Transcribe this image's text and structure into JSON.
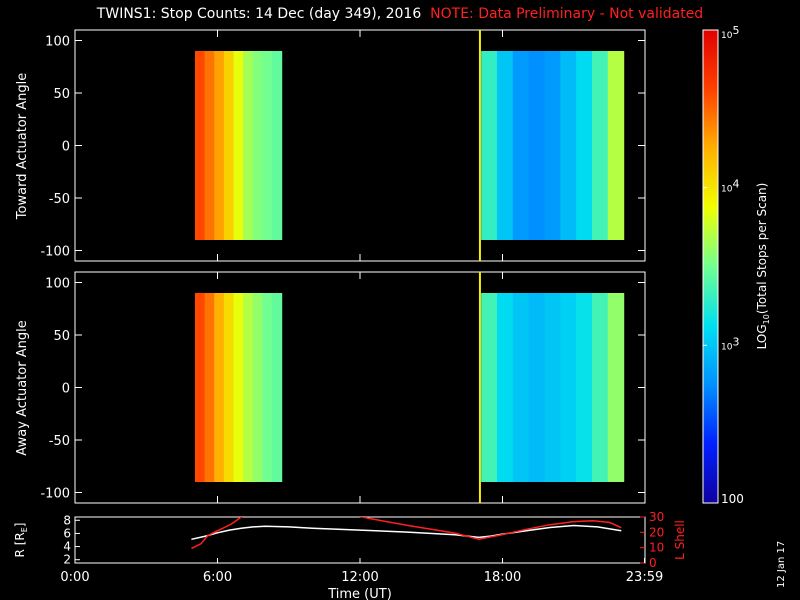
{
  "title": {
    "main": "TWINS1: Stop Counts: 14 Dec (day 349), 2016",
    "note": "NOTE: Data Preliminary - Not validated"
  },
  "date_stamp": "12 Jan 17",
  "colors": {
    "background": "#000000",
    "axis": "#ffffff",
    "note": "#ff2020",
    "r_line": "#ffffff",
    "lshell_line": "#ff2020",
    "separator_line": "#f4f000",
    "colormap": [
      "#1000a0",
      "#0020ff",
      "#0090ff",
      "#00e0f0",
      "#70ff90",
      "#f0ff00",
      "#ffb000",
      "#ff4000",
      "#e00000"
    ]
  },
  "chart_data": [
    {
      "id": "toward",
      "type": "heatmap",
      "ylabel": "Toward Actuator Angle",
      "xlim": [
        0,
        24
      ],
      "ylim": [
        -110,
        110
      ],
      "yticks": [
        100,
        50,
        0,
        -50,
        -100
      ],
      "angle_range": [
        -90,
        90
      ],
      "log_counts_blocks": [
        {
          "t_start": 5.05,
          "t_end": 8.7,
          "levels": [
            4.6,
            4.45,
            4.3,
            4.1,
            3.85,
            3.65,
            3.55,
            3.5,
            3.45
          ]
        },
        {
          "t_start": 17.1,
          "t_end": 23.1,
          "levels": [
            3.3,
            3.0,
            2.8,
            2.75,
            2.8,
            2.95,
            3.1,
            3.35,
            3.7
          ]
        }
      ],
      "vertical_marker_time": 17.05
    },
    {
      "id": "away",
      "type": "heatmap",
      "ylabel": "Away Actuator Angle",
      "xlim": [
        0,
        24
      ],
      "ylim": [
        -110,
        110
      ],
      "yticks": [
        100,
        50,
        0,
        -50,
        -100
      ],
      "angle_range": [
        -90,
        90
      ],
      "log_counts_blocks": [
        {
          "t_start": 5.05,
          "t_end": 8.7,
          "levels": [
            4.6,
            4.45,
            4.25,
            4.05,
            3.85,
            3.7,
            3.6,
            3.5,
            3.45
          ]
        },
        {
          "t_start": 17.1,
          "t_end": 23.1,
          "levels": [
            3.35,
            3.1,
            3.0,
            2.95,
            3.0,
            3.05,
            3.15,
            3.35,
            3.6
          ]
        }
      ],
      "vertical_marker_time": 17.05
    },
    {
      "id": "orbit",
      "type": "line",
      "ylabel": "R [R",
      "ylabel_sub": "E",
      "ylabel_end": "]",
      "y2label": "L Shell",
      "xlabel": "Time (UT)",
      "xlim": [
        0,
        24
      ],
      "xtick_labels": [
        "0:00",
        "6:00",
        "12:00",
        "18:00",
        "23:59"
      ],
      "xticks": [
        0,
        6,
        12,
        18,
        23.98
      ],
      "ylim": [
        1.5,
        8.5
      ],
      "yticks": [
        2,
        4,
        6,
        8
      ],
      "y2lim": [
        0,
        30
      ],
      "y2ticks": [
        0,
        10,
        20,
        30
      ],
      "series": [
        {
          "key": "R",
          "x": [
            4.9,
            5.5,
            6.0,
            6.5,
            7.0,
            7.5,
            8.0,
            9.0,
            10.0,
            12.0,
            14.0,
            16.0,
            17.0,
            17.5,
            18.0,
            19.0,
            20.0,
            21.0,
            22.0,
            23.0
          ],
          "y": [
            5.1,
            5.6,
            6.1,
            6.5,
            6.8,
            7.0,
            7.1,
            7.0,
            6.8,
            6.5,
            6.2,
            5.8,
            5.4,
            5.6,
            5.9,
            6.4,
            6.9,
            7.2,
            7.0,
            6.4
          ]
        },
        {
          "key": "L",
          "axis": "right",
          "x": [
            4.9,
            5.3,
            5.6,
            6.0,
            6.6,
            7.05,
            11.95,
            12.4,
            14.0,
            16.0,
            17.0,
            18.0,
            19.0,
            20.0,
            21.0,
            21.8,
            22.5,
            23.0
          ],
          "y": [
            9.5,
            12.5,
            18.0,
            21.0,
            25.5,
            30.5,
            30.5,
            29.0,
            24.5,
            19.5,
            15.5,
            18.5,
            22.0,
            25.0,
            27.0,
            27.5,
            26.5,
            23.0
          ]
        }
      ]
    }
  ],
  "colorbar": {
    "label_prefix": "LOG",
    "label_sub": "10",
    "label_suffix": "(Total Stops per Scan)",
    "range": [
      2,
      5
    ],
    "ticks": [
      {
        "value": 5,
        "base": "10",
        "exp": "5"
      },
      {
        "value": 4,
        "base": "10",
        "exp": "4"
      },
      {
        "value": 3,
        "base": "10",
        "exp": "3"
      },
      {
        "value": 2,
        "base": "100",
        "exp": ""
      }
    ]
  }
}
